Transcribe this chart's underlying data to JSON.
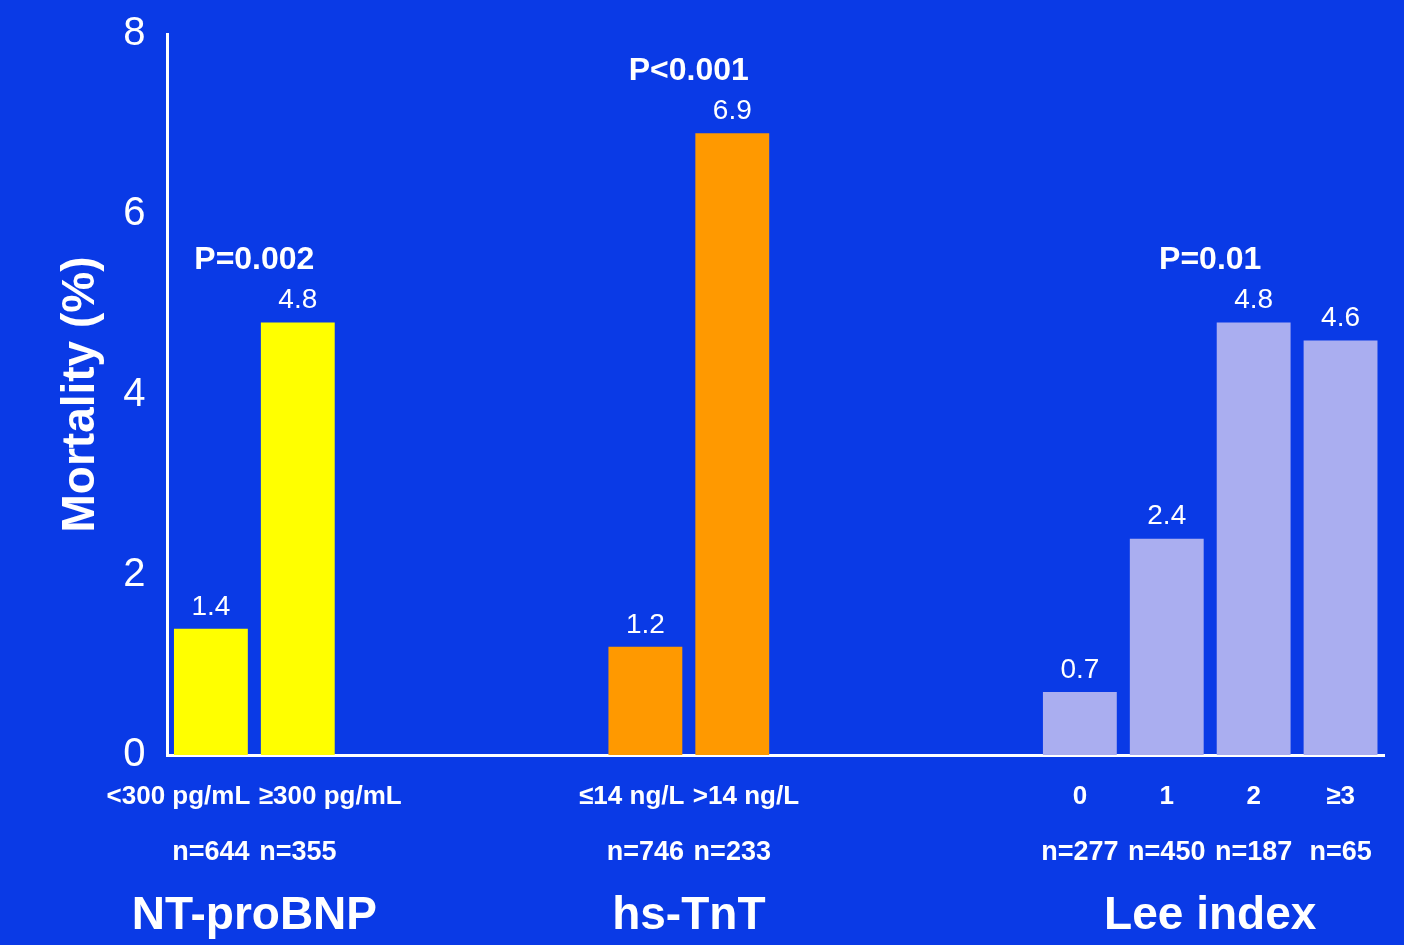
{
  "chart_data": {
    "type": "bar",
    "ylabel": "Mortality (%)",
    "categories": [
      "<300 pg/mL",
      "≥300 pg/mL",
      null,
      null,
      null,
      "≤14 ng/L",
      ">14 ng/L",
      null,
      null,
      null,
      "0",
      "1",
      "2",
      "≥3"
    ],
    "values": [
      1.4,
      4.8,
      null,
      null,
      null,
      1.2,
      6.9,
      null,
      null,
      null,
      0.7,
      2.4,
      4.8,
      4.6
    ],
    "colors": [
      "#ffff00",
      "#ffff00",
      null,
      null,
      null,
      "#ff9900",
      "#ff9900",
      null,
      null,
      null,
      "#aaaef0",
      "#aaaef0",
      "#aaaef0",
      "#aaaef0"
    ],
    "ylim": [
      0,
      8
    ],
    "yticks": [
      0,
      2,
      4,
      6,
      8
    ],
    "grid": false,
    "legend": false,
    "data_labels": true,
    "annotations": [
      {
        "text": "P=0.002",
        "x": "≥300 pg/mL",
        "y": 4.8
      },
      {
        "text": "P<0.001",
        "x": ">14 ng/L",
        "y": 6.9
      },
      {
        "text": "P=0.01",
        "x": "2",
        "y": 4.8
      },
      "n=644",
      "n=355",
      "n=746",
      "n=233",
      "n=277",
      "n=450",
      "n=187",
      "n=65",
      "NT-proBNP",
      "hs-TnT",
      "Lee index"
    ]
  }
}
